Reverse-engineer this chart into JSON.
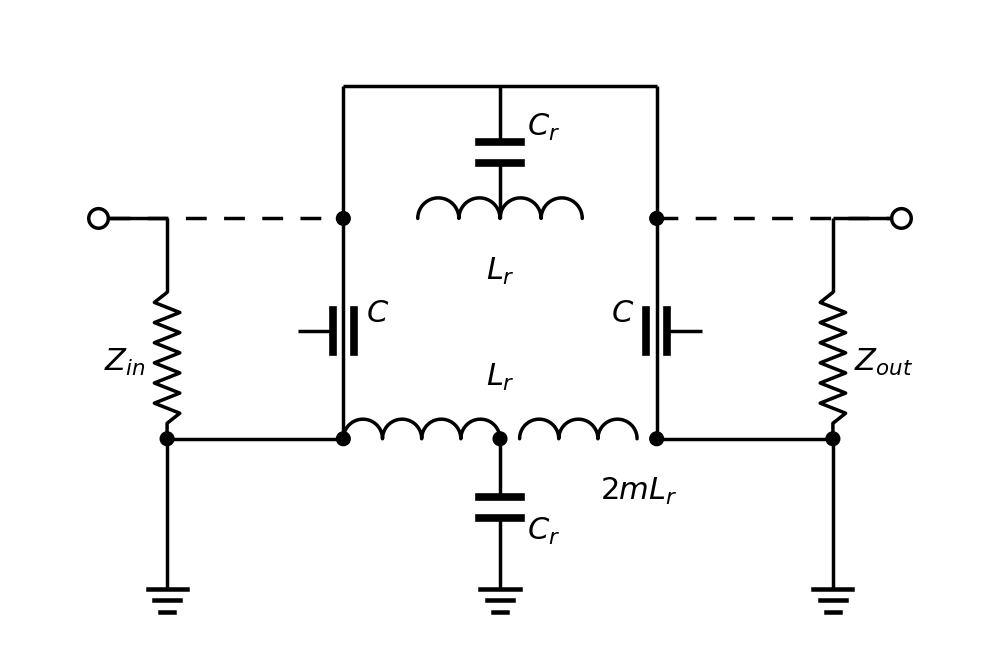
{
  "fig_width": 10.0,
  "fig_height": 6.66,
  "dpi": 100,
  "line_color": "black",
  "line_width": 2.5,
  "background_color": "white",
  "labels": {
    "Cr_top": "$C_r$",
    "Cr_bot": "$C_r$",
    "Lr_top": "$L_r$",
    "Lr_bot": "$L_r$",
    "C_left": "$C$",
    "C_right": "$C$",
    "2mLr": "$2mL_r$",
    "Zin": "$Z_{in}$",
    "Zout": "$Z_{out}$"
  },
  "label_fontsize": 22
}
